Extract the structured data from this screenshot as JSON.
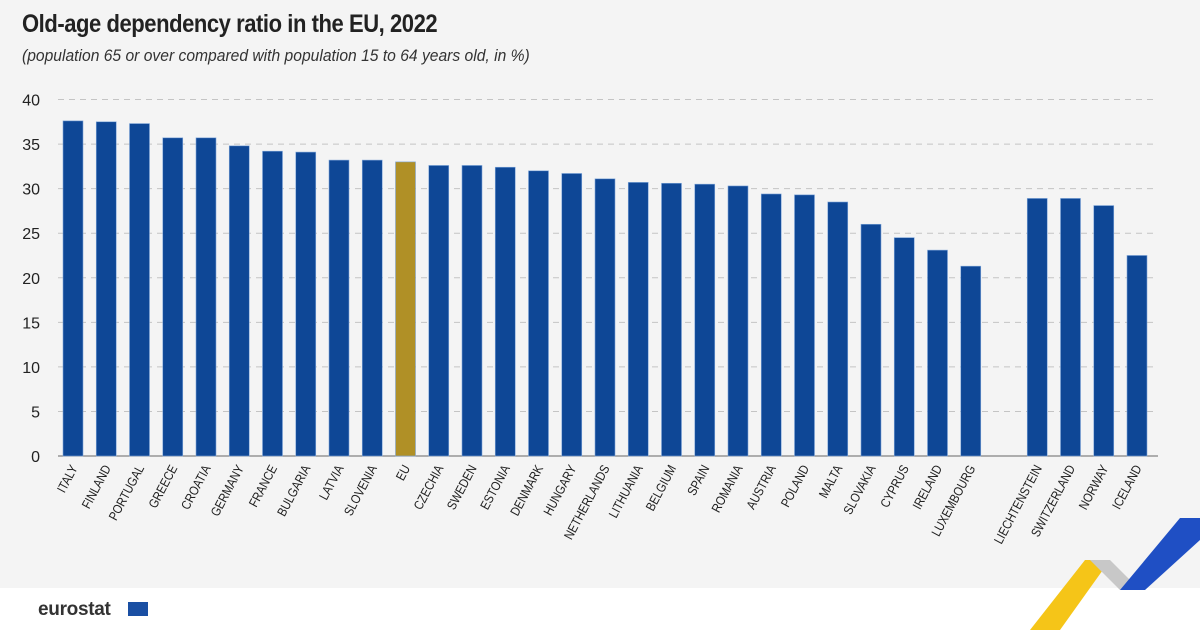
{
  "chart_data": {
    "type": "bar",
    "title": "Old-age dependency ratio in the EU, 2022",
    "subtitle": "(population 65 or over compared with population 15 to 64 years old, in %)",
    "ylim": [
      0,
      40
    ],
    "yticks": [
      "0",
      "5",
      "10",
      "15",
      "20",
      "25",
      "30",
      "35",
      "40"
    ],
    "grid": true,
    "categories": [
      "ITALY",
      "FINLAND",
      "PORTUGAL",
      "GREECE",
      "CROATIA",
      "GERMANY",
      "FRANCE",
      "BULGARIA",
      "LATVIA",
      "SLOVENIA",
      "EU",
      "CZECHIA",
      "SWEDEN",
      "ESTONIA",
      "DENMARK",
      "HUNGARY",
      "NETHERLANDS",
      "LITHUANIA",
      "BELGIUM",
      "SPAIN",
      "ROMANIA",
      "AUSTRIA",
      "POLAND",
      "MALTA",
      "SLOVAKIA",
      "CYPRUS",
      "IRELAND",
      "LUXEMBOURG",
      "",
      "LIECHTENSTEIN",
      "SWITZERLAND",
      "NORWAY",
      "ICELAND"
    ],
    "values": [
      37.6,
      37.5,
      37.3,
      35.7,
      35.7,
      34.8,
      34.2,
      34.1,
      33.2,
      33.2,
      33.0,
      32.6,
      32.6,
      32.4,
      32.0,
      31.7,
      31.1,
      30.7,
      30.6,
      30.5,
      30.3,
      29.4,
      29.3,
      28.5,
      26.0,
      24.5,
      23.1,
      21.3,
      null,
      28.9,
      28.9,
      28.1,
      22.5
    ],
    "colors": {
      "default": "#0e4796",
      "highlight": "#b09026",
      "highlight_category": "EU"
    }
  },
  "footer": {
    "logo": "eurostat"
  }
}
